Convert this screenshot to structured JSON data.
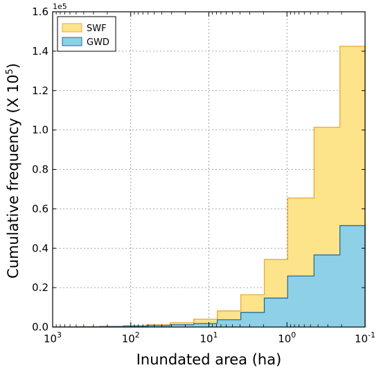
{
  "chart_data": {
    "type": "area",
    "xlabel": "Inundated area (ha)",
    "ylabel": "Cumulative frequency (X 10",
    "ylabel_exponent": "5",
    "ylabel_suffix": ")",
    "y_offset_label": "1e5",
    "x_scale": "log",
    "x_reversed": true,
    "xlim": [
      1000,
      0.1
    ],
    "ylim": [
      0,
      1.6
    ],
    "x_ticks": [
      {
        "base": "10",
        "exp": "3",
        "value": 1000
      },
      {
        "base": "10",
        "exp": "2",
        "value": 100
      },
      {
        "base": "10",
        "exp": "1",
        "value": 10
      },
      {
        "base": "10",
        "exp": "0",
        "value": 1
      },
      {
        "base": "10",
        "exp": "-1",
        "value": 0.1
      }
    ],
    "y_ticks": [
      "0.0",
      "0.2",
      "0.4",
      "0.6",
      "0.8",
      "1.0",
      "1.2",
      "1.4",
      "1.6"
    ],
    "grid": true,
    "legend_position": "top-left",
    "bin_edges_ha": [
      1000,
      500,
      250,
      125,
      62.5,
      31.25,
      15.6,
      7.8,
      3.9,
      1.95,
      0.98,
      0.45,
      0.21,
      0.1
    ],
    "series": [
      {
        "name": "SWF",
        "values": [
          0.001,
          0.002,
          0.004,
          0.007,
          0.012,
          0.022,
          0.04,
          0.082,
          0.164,
          0.343,
          0.655,
          1.014,
          1.425
        ],
        "fill": "#fde38a",
        "stroke": "#e8a93c"
      },
      {
        "name": "GWD",
        "values": [
          0.0005,
          0.001,
          0.002,
          0.004,
          0.007,
          0.012,
          0.018,
          0.037,
          0.074,
          0.147,
          0.259,
          0.366,
          0.515
        ],
        "fill": "#8ed0e6",
        "stroke": "#1f6f9f"
      }
    ]
  }
}
